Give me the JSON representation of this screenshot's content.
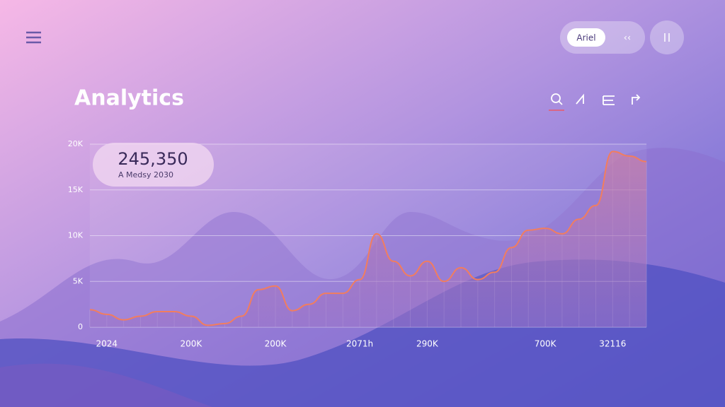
{
  "header": {
    "title": "Analytics",
    "button": "Ariel"
  },
  "chart_data": {
    "type": "area",
    "annotation": {
      "value": "245,350",
      "caption": "A Medsy 2030"
    },
    "categories": [
      null,
      "2024",
      null,
      null,
      null,
      null,
      "200K",
      null,
      null,
      null,
      null,
      "200K",
      null,
      null,
      null,
      null,
      "2071h",
      null,
      null,
      null,
      "290K",
      null,
      null,
      null,
      null,
      null,
      null,
      "700K",
      null,
      null,
      null,
      "32116",
      null,
      null
    ],
    "values": [
      1900,
      1400,
      800,
      1200,
      1700,
      1700,
      1200,
      200,
      400,
      1200,
      4100,
      4500,
      1800,
      2500,
      3700,
      3700,
      5200,
      10200,
      7200,
      5600,
      7200,
      5000,
      6500,
      5200,
      6000,
      8700,
      10600,
      10800,
      10200,
      11800,
      13300,
      19200,
      18700,
      18100
    ],
    "color": "#f27d5e",
    "ylim": [
      0,
      20000
    ],
    "yticks": [
      0,
      {
        "value": 5000,
        "label": "5K"
      },
      {
        "value": 10000,
        "label": "10K"
      },
      {
        "value": 15000,
        "label": "15K"
      },
      {
        "value": 20000,
        "label": "20K"
      }
    ],
    "grid": true
  }
}
